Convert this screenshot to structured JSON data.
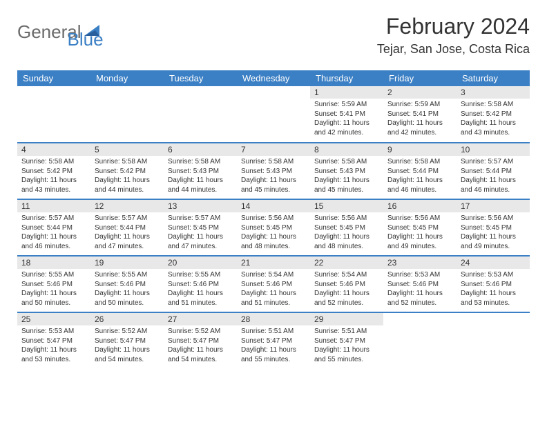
{
  "logo": {
    "general": "General",
    "blue": "Blue"
  },
  "title": "February 2024",
  "location": "Tejar, San Jose, Costa Rica",
  "colors": {
    "header_bg": "#3b7fc4",
    "daynum_bg": "#e8e8e8",
    "text": "#333333",
    "logo_gray": "#6b6b6b",
    "logo_blue": "#3b7fc4"
  },
  "day_headers": [
    "Sunday",
    "Monday",
    "Tuesday",
    "Wednesday",
    "Thursday",
    "Friday",
    "Saturday"
  ],
  "weeks": [
    [
      {
        "num": "",
        "sunrise": "",
        "sunset": "",
        "daylight": ""
      },
      {
        "num": "",
        "sunrise": "",
        "sunset": "",
        "daylight": ""
      },
      {
        "num": "",
        "sunrise": "",
        "sunset": "",
        "daylight": ""
      },
      {
        "num": "",
        "sunrise": "",
        "sunset": "",
        "daylight": ""
      },
      {
        "num": "1",
        "sunrise": "Sunrise: 5:59 AM",
        "sunset": "Sunset: 5:41 PM",
        "daylight": "Daylight: 11 hours and 42 minutes."
      },
      {
        "num": "2",
        "sunrise": "Sunrise: 5:59 AM",
        "sunset": "Sunset: 5:41 PM",
        "daylight": "Daylight: 11 hours and 42 minutes."
      },
      {
        "num": "3",
        "sunrise": "Sunrise: 5:58 AM",
        "sunset": "Sunset: 5:42 PM",
        "daylight": "Daylight: 11 hours and 43 minutes."
      }
    ],
    [
      {
        "num": "4",
        "sunrise": "Sunrise: 5:58 AM",
        "sunset": "Sunset: 5:42 PM",
        "daylight": "Daylight: 11 hours and 43 minutes."
      },
      {
        "num": "5",
        "sunrise": "Sunrise: 5:58 AM",
        "sunset": "Sunset: 5:42 PM",
        "daylight": "Daylight: 11 hours and 44 minutes."
      },
      {
        "num": "6",
        "sunrise": "Sunrise: 5:58 AM",
        "sunset": "Sunset: 5:43 PM",
        "daylight": "Daylight: 11 hours and 44 minutes."
      },
      {
        "num": "7",
        "sunrise": "Sunrise: 5:58 AM",
        "sunset": "Sunset: 5:43 PM",
        "daylight": "Daylight: 11 hours and 45 minutes."
      },
      {
        "num": "8",
        "sunrise": "Sunrise: 5:58 AM",
        "sunset": "Sunset: 5:43 PM",
        "daylight": "Daylight: 11 hours and 45 minutes."
      },
      {
        "num": "9",
        "sunrise": "Sunrise: 5:58 AM",
        "sunset": "Sunset: 5:44 PM",
        "daylight": "Daylight: 11 hours and 46 minutes."
      },
      {
        "num": "10",
        "sunrise": "Sunrise: 5:57 AM",
        "sunset": "Sunset: 5:44 PM",
        "daylight": "Daylight: 11 hours and 46 minutes."
      }
    ],
    [
      {
        "num": "11",
        "sunrise": "Sunrise: 5:57 AM",
        "sunset": "Sunset: 5:44 PM",
        "daylight": "Daylight: 11 hours and 46 minutes."
      },
      {
        "num": "12",
        "sunrise": "Sunrise: 5:57 AM",
        "sunset": "Sunset: 5:44 PM",
        "daylight": "Daylight: 11 hours and 47 minutes."
      },
      {
        "num": "13",
        "sunrise": "Sunrise: 5:57 AM",
        "sunset": "Sunset: 5:45 PM",
        "daylight": "Daylight: 11 hours and 47 minutes."
      },
      {
        "num": "14",
        "sunrise": "Sunrise: 5:56 AM",
        "sunset": "Sunset: 5:45 PM",
        "daylight": "Daylight: 11 hours and 48 minutes."
      },
      {
        "num": "15",
        "sunrise": "Sunrise: 5:56 AM",
        "sunset": "Sunset: 5:45 PM",
        "daylight": "Daylight: 11 hours and 48 minutes."
      },
      {
        "num": "16",
        "sunrise": "Sunrise: 5:56 AM",
        "sunset": "Sunset: 5:45 PM",
        "daylight": "Daylight: 11 hours and 49 minutes."
      },
      {
        "num": "17",
        "sunrise": "Sunrise: 5:56 AM",
        "sunset": "Sunset: 5:45 PM",
        "daylight": "Daylight: 11 hours and 49 minutes."
      }
    ],
    [
      {
        "num": "18",
        "sunrise": "Sunrise: 5:55 AM",
        "sunset": "Sunset: 5:46 PM",
        "daylight": "Daylight: 11 hours and 50 minutes."
      },
      {
        "num": "19",
        "sunrise": "Sunrise: 5:55 AM",
        "sunset": "Sunset: 5:46 PM",
        "daylight": "Daylight: 11 hours and 50 minutes."
      },
      {
        "num": "20",
        "sunrise": "Sunrise: 5:55 AM",
        "sunset": "Sunset: 5:46 PM",
        "daylight": "Daylight: 11 hours and 51 minutes."
      },
      {
        "num": "21",
        "sunrise": "Sunrise: 5:54 AM",
        "sunset": "Sunset: 5:46 PM",
        "daylight": "Daylight: 11 hours and 51 minutes."
      },
      {
        "num": "22",
        "sunrise": "Sunrise: 5:54 AM",
        "sunset": "Sunset: 5:46 PM",
        "daylight": "Daylight: 11 hours and 52 minutes."
      },
      {
        "num": "23",
        "sunrise": "Sunrise: 5:53 AM",
        "sunset": "Sunset: 5:46 PM",
        "daylight": "Daylight: 11 hours and 52 minutes."
      },
      {
        "num": "24",
        "sunrise": "Sunrise: 5:53 AM",
        "sunset": "Sunset: 5:46 PM",
        "daylight": "Daylight: 11 hours and 53 minutes."
      }
    ],
    [
      {
        "num": "25",
        "sunrise": "Sunrise: 5:53 AM",
        "sunset": "Sunset: 5:47 PM",
        "daylight": "Daylight: 11 hours and 53 minutes."
      },
      {
        "num": "26",
        "sunrise": "Sunrise: 5:52 AM",
        "sunset": "Sunset: 5:47 PM",
        "daylight": "Daylight: 11 hours and 54 minutes."
      },
      {
        "num": "27",
        "sunrise": "Sunrise: 5:52 AM",
        "sunset": "Sunset: 5:47 PM",
        "daylight": "Daylight: 11 hours and 54 minutes."
      },
      {
        "num": "28",
        "sunrise": "Sunrise: 5:51 AM",
        "sunset": "Sunset: 5:47 PM",
        "daylight": "Daylight: 11 hours and 55 minutes."
      },
      {
        "num": "29",
        "sunrise": "Sunrise: 5:51 AM",
        "sunset": "Sunset: 5:47 PM",
        "daylight": "Daylight: 11 hours and 55 minutes."
      },
      {
        "num": "",
        "sunrise": "",
        "sunset": "",
        "daylight": ""
      },
      {
        "num": "",
        "sunrise": "",
        "sunset": "",
        "daylight": ""
      }
    ]
  ]
}
